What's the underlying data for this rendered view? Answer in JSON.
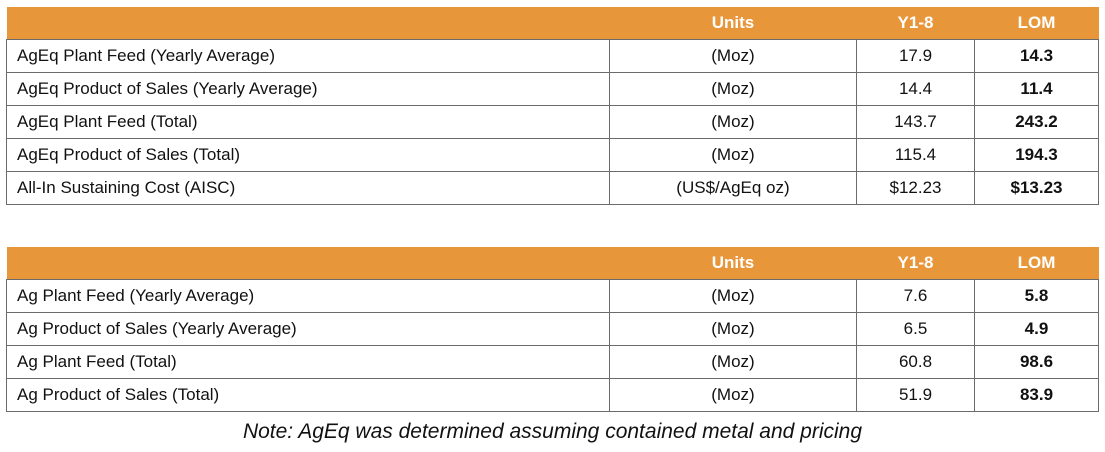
{
  "table1": {
    "headers": {
      "label": "",
      "units": "Units",
      "y1_8": "Y1-8",
      "lom": "LOM"
    },
    "rows": [
      {
        "label": "AgEq Plant Feed (Yearly Average)",
        "units": "(Moz)",
        "y1_8": "17.9",
        "lom": "14.3"
      },
      {
        "label": "AgEq Product of Sales (Yearly Average)",
        "units": "(Moz)",
        "y1_8": "14.4",
        "lom": "11.4"
      },
      {
        "label": "AgEq Plant Feed (Total)",
        "units": "(Moz)",
        "y1_8": "143.7",
        "lom": "243.2"
      },
      {
        "label": "AgEq Product of Sales (Total)",
        "units": "(Moz)",
        "y1_8": "115.4",
        "lom": "194.3"
      },
      {
        "label": "All-In Sustaining Cost (AISC)",
        "units": "(US$/AgEq oz)",
        "y1_8": "$12.23",
        "lom": "$13.23"
      }
    ]
  },
  "table2": {
    "headers": {
      "label": "",
      "units": "Units",
      "y1_8": "Y1-8",
      "lom": "LOM"
    },
    "rows": [
      {
        "label": "Ag Plant Feed (Yearly Average)",
        "units": "(Moz)",
        "y1_8": "7.6",
        "lom": "5.8"
      },
      {
        "label": "Ag Product of Sales (Yearly Average)",
        "units": "(Moz)",
        "y1_8": "6.5",
        "lom": "4.9"
      },
      {
        "label": "Ag Plant Feed (Total)",
        "units": "(Moz)",
        "y1_8": "60.8",
        "lom": "98.6"
      },
      {
        "label": "Ag Product of Sales (Total)",
        "units": "(Moz)",
        "y1_8": "51.9",
        "lom": "83.9"
      }
    ]
  },
  "note": "Note: AgEq was determined assuming contained metal and pricing",
  "colors": {
    "header_bg": "#e8963a",
    "header_text": "#ffffff",
    "border": "#6b6b6b"
  }
}
